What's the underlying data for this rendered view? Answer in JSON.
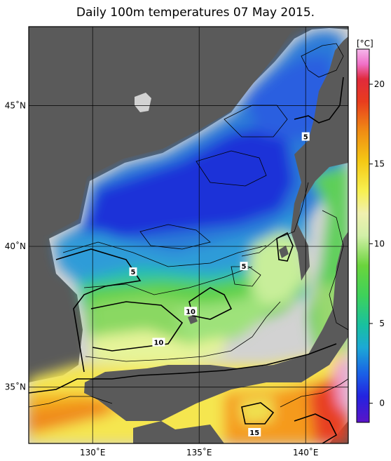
{
  "title": "Daily 100m temperatures 07 May 2015.",
  "map": {
    "lat_ticks": [
      {
        "value": 35,
        "label": "35˚N"
      },
      {
        "value": 40,
        "label": "40˚N"
      },
      {
        "value": 45,
        "label": "45˚N"
      }
    ],
    "lon_ticks": [
      {
        "value": 130,
        "label": "130˚E"
      },
      {
        "value": 135,
        "label": "135˚E"
      },
      {
        "value": 140,
        "label": "140˚E"
      }
    ],
    "lon_range": [
      127,
      142
    ],
    "lat_range": [
      33,
      47.8
    ],
    "contour_labels": [
      {
        "text": "5",
        "lon": 140.0,
        "lat": 43.9
      },
      {
        "text": "5",
        "lon": 131.9,
        "lat": 39.1
      },
      {
        "text": "5",
        "lon": 137.1,
        "lat": 39.3
      },
      {
        "text": "10",
        "lon": 134.6,
        "lat": 37.7
      },
      {
        "text": "10",
        "lon": 133.1,
        "lat": 36.6
      },
      {
        "text": "15",
        "lon": 137.6,
        "lat": 33.4
      }
    ],
    "colors": {
      "land": "#5a5a5a",
      "nodata": "#d2d2d2",
      "grid": "#000000"
    }
  },
  "colorbar": {
    "unit": "[°C]",
    "ticks": [
      0,
      5,
      10,
      15,
      20
    ],
    "range": [
      -1.2,
      22.2
    ]
  }
}
